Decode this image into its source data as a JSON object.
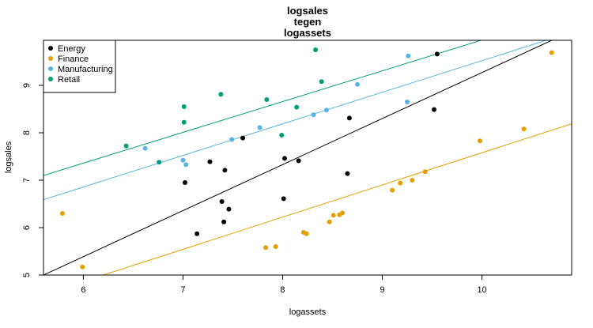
{
  "chart_data": {
    "type": "scatter",
    "title_lines": [
      "logsales",
      "tegen",
      "logassets"
    ],
    "xlabel": "logassets",
    "ylabel": "logsales",
    "xlim": [
      5.6,
      10.9
    ],
    "ylim": [
      5.0,
      9.95
    ],
    "x_ticks": [
      6,
      7,
      8,
      9,
      10
    ],
    "y_ticks": [
      5,
      6,
      7,
      8,
      9
    ],
    "legend_position": "top-left",
    "series": [
      {
        "name": "Energy",
        "color": "#000000",
        "points": [
          [
            7.02,
            6.95
          ],
          [
            7.14,
            5.87
          ],
          [
            7.27,
            7.39
          ],
          [
            7.39,
            6.55
          ],
          [
            7.42,
            7.21
          ],
          [
            7.46,
            6.39
          ],
          [
            7.41,
            6.12
          ],
          [
            7.6,
            7.89
          ],
          [
            8.02,
            7.46
          ],
          [
            8.01,
            6.61
          ],
          [
            8.16,
            7.41
          ],
          [
            8.65,
            7.14
          ],
          [
            8.67,
            8.31
          ],
          [
            9.52,
            8.49
          ],
          [
            9.55,
            9.66
          ]
        ],
        "line": [
          [
            5.6,
            5.0
          ],
          [
            10.7,
            9.95
          ]
        ]
      },
      {
        "name": "Finance",
        "color": "#E69F00",
        "points": [
          [
            5.79,
            6.3
          ],
          [
            5.99,
            5.17
          ],
          [
            7.83,
            5.58
          ],
          [
            7.93,
            5.6
          ],
          [
            8.21,
            5.9
          ],
          [
            8.24,
            5.87
          ],
          [
            8.47,
            6.12
          ],
          [
            8.51,
            6.26
          ],
          [
            8.57,
            6.27
          ],
          [
            8.6,
            6.31
          ],
          [
            9.1,
            6.79
          ],
          [
            9.18,
            6.94
          ],
          [
            9.3,
            7.0
          ],
          [
            9.43,
            7.18
          ],
          [
            9.98,
            7.83
          ],
          [
            10.42,
            8.08
          ],
          [
            10.7,
            9.69
          ]
        ],
        "line": [
          [
            6.2,
            5.0
          ],
          [
            10.9,
            8.19
          ]
        ]
      },
      {
        "name": "Manufacturing",
        "color": "#56B4E9",
        "points": [
          [
            6.62,
            7.67
          ],
          [
            7.0,
            7.42
          ],
          [
            7.03,
            7.33
          ],
          [
            7.49,
            7.86
          ],
          [
            7.77,
            8.11
          ],
          [
            8.31,
            8.38
          ],
          [
            8.44,
            8.48
          ],
          [
            8.75,
            9.02
          ],
          [
            9.25,
            8.65
          ],
          [
            9.26,
            9.62
          ]
        ],
        "line": [
          [
            5.6,
            6.59
          ],
          [
            10.9,
            10.12
          ]
        ]
      },
      {
        "name": "Retail",
        "color": "#009E73",
        "points": [
          [
            6.43,
            7.72
          ],
          [
            6.76,
            7.38
          ],
          [
            7.01,
            8.55
          ],
          [
            7.01,
            8.22
          ],
          [
            7.38,
            8.81
          ],
          [
            7.84,
            8.7
          ],
          [
            7.99,
            7.95
          ],
          [
            8.14,
            8.54
          ],
          [
            8.33,
            9.75
          ],
          [
            8.39,
            9.08
          ]
        ],
        "line": [
          [
            5.6,
            7.1
          ],
          [
            10.9,
            10.54
          ]
        ]
      }
    ]
  }
}
